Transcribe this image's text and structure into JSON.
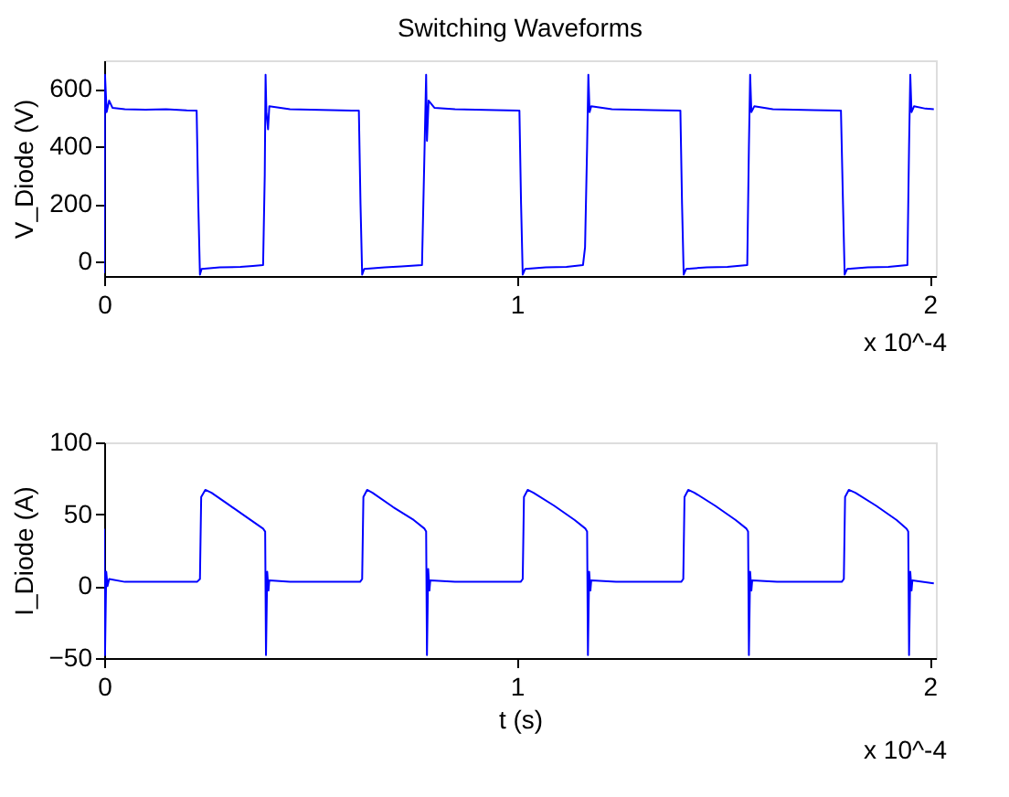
{
  "chart_data": [
    {
      "type": "line",
      "title": "Switching Waveforms",
      "ylabel": "V_Diode (V)",
      "annotations": [
        "x 10^-4"
      ],
      "x": [
        0.0,
        0.002,
        0.006,
        0.012,
        0.02,
        0.05,
        0.1,
        0.15,
        0.2,
        0.224,
        0.228,
        0.232,
        0.236,
        0.28,
        0.33,
        0.36,
        0.385,
        0.389,
        0.391,
        0.393,
        0.397,
        0.4,
        0.45,
        0.5,
        0.55,
        0.6,
        0.617,
        0.621,
        0.625,
        0.63,
        0.68,
        0.72,
        0.77,
        0.776,
        0.78,
        0.782,
        0.786,
        0.8,
        0.85,
        0.9,
        0.95,
        1.006,
        1.01,
        1.014,
        1.02,
        1.07,
        1.12,
        1.16,
        1.165,
        1.17,
        1.173,
        1.176,
        1.18,
        1.23,
        1.28,
        1.33,
        1.396,
        1.4,
        1.404,
        1.41,
        1.46,
        1.51,
        1.558,
        1.562,
        1.565,
        1.568,
        1.575,
        1.62,
        1.67,
        1.72,
        1.785,
        1.79,
        1.794,
        1.8,
        1.85,
        1.9,
        1.946,
        1.95,
        1.953,
        1.956,
        1.962,
        1.99,
        2.01
      ],
      "series": [
        {
          "color": "#0000ff",
          "values": [
            -40,
            650,
            520,
            560,
            535,
            530,
            528,
            530,
            526,
            525,
            200,
            -45,
            -25,
            -20,
            -18,
            -15,
            -12,
            300,
            650,
            520,
            460,
            540,
            530,
            528,
            527,
            525,
            525,
            200,
            -45,
            -25,
            -20,
            -17,
            -12,
            380,
            650,
            420,
            560,
            535,
            530,
            528,
            527,
            525,
            200,
            -45,
            -25,
            -20,
            -18,
            -12,
            50,
            400,
            650,
            520,
            540,
            530,
            528,
            527,
            525,
            200,
            -45,
            -25,
            -20,
            -18,
            -12,
            400,
            650,
            520,
            540,
            530,
            528,
            527,
            525,
            200,
            -45,
            -25,
            -20,
            -18,
            -12,
            400,
            650,
            520,
            540,
            532,
            530
          ]
        }
      ],
      "xlim": [
        0,
        2.015
      ],
      "xticks": [
        0,
        1,
        2
      ],
      "ylim": [
        -50,
        700
      ],
      "yticks": [
        0,
        200,
        400,
        600
      ],
      "grid": false,
      "legend": false
    },
    {
      "type": "line",
      "xlabel": "t (s)",
      "ylabel": "I_Diode (A)",
      "annotations": [
        "x 10^-4"
      ],
      "x": [
        0.0,
        0.002,
        0.005,
        0.008,
        0.012,
        0.05,
        0.1,
        0.15,
        0.225,
        0.232,
        0.235,
        0.245,
        0.26,
        0.3,
        0.35,
        0.385,
        0.39,
        0.392,
        0.395,
        0.398,
        0.4,
        0.45,
        0.5,
        0.6,
        0.62,
        0.625,
        0.628,
        0.637,
        0.65,
        0.7,
        0.75,
        0.776,
        0.78,
        0.782,
        0.785,
        0.788,
        0.79,
        0.85,
        0.9,
        1.009,
        1.014,
        1.017,
        1.026,
        1.04,
        1.09,
        1.14,
        1.166,
        1.17,
        1.172,
        1.175,
        1.178,
        1.18,
        1.24,
        1.3,
        1.398,
        1.403,
        1.406,
        1.415,
        1.43,
        1.48,
        1.53,
        1.556,
        1.56,
        1.562,
        1.565,
        1.568,
        1.57,
        1.63,
        1.69,
        1.787,
        1.792,
        1.795,
        1.804,
        1.82,
        1.87,
        1.92,
        1.944,
        1.948,
        1.95,
        1.953,
        1.956,
        1.958,
        2.01
      ],
      "series": [
        {
          "color": "#0000ff",
          "values": [
            40,
            -48,
            10,
            0,
            5,
            3,
            3,
            3,
            3,
            5,
            62,
            67,
            65,
            57,
            47,
            40,
            38,
            -48,
            10,
            -3,
            4,
            3,
            3,
            3,
            3,
            5,
            62,
            67,
            65,
            55,
            46,
            40,
            38,
            -48,
            12,
            -3,
            4,
            3,
            3,
            3,
            5,
            62,
            67,
            65,
            56,
            46,
            40,
            38,
            -48,
            10,
            -3,
            4,
            3,
            3,
            3,
            5,
            62,
            67,
            65,
            56,
            46,
            40,
            38,
            -48,
            10,
            -3,
            4,
            3,
            3,
            3,
            5,
            62,
            67,
            65,
            56,
            46,
            40,
            38,
            -48,
            10,
            -3,
            4,
            2
          ]
        }
      ],
      "xlim": [
        0,
        2.015
      ],
      "xticks": [
        0,
        1,
        2
      ],
      "ylim": [
        -50,
        100
      ],
      "yticks": [
        -50,
        0,
        50,
        100
      ],
      "grid": false,
      "legend": false
    }
  ]
}
